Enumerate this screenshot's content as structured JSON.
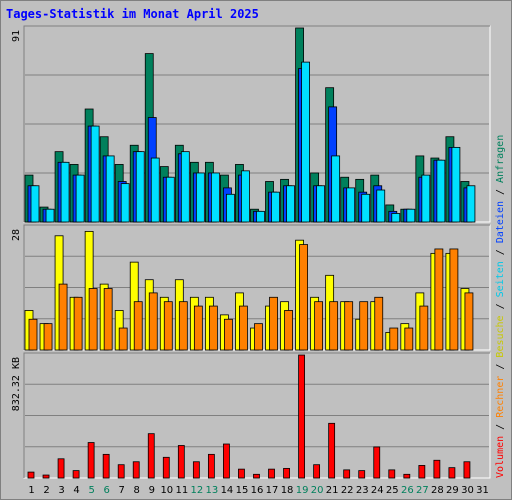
{
  "chart_data": {
    "title": "Tages-Statistik im Monat April 2025",
    "days": [
      1,
      2,
      3,
      4,
      5,
      6,
      7,
      8,
      9,
      10,
      11,
      12,
      13,
      14,
      15,
      16,
      17,
      18,
      19,
      20,
      21,
      22,
      23,
      24,
      25,
      26,
      27,
      28,
      29,
      30,
      31
    ],
    "weekend_days": [
      5,
      6,
      12,
      13,
      19,
      20,
      26,
      27
    ],
    "panels": [
      {
        "id": "requests",
        "type": "bar",
        "ymax_label": "91",
        "ymax": 91,
        "series": [
          {
            "name": "Anfragen",
            "color": "#00805c",
            "values": [
              22,
              7,
              33,
              27,
              53,
              40,
              27,
              36,
              79,
              26,
              36,
              28,
              28,
              22,
              27,
              6,
              19,
              20,
              91,
              23,
              63,
              21,
              20,
              22,
              8,
              6,
              31,
              30,
              40,
              19,
              0
            ]
          },
          {
            "name": "Dateien",
            "color": "#0040ff",
            "values": [
              17,
              6,
              28,
              22,
              45,
              31,
              19,
              33,
              49,
              21,
              32,
              23,
              23,
              16,
              22,
              5,
              14,
              17,
              72,
              17,
              54,
              16,
              14,
              17,
              5,
              6,
              21,
              29,
              35,
              16,
              0
            ]
          },
          {
            "name": "Seiten",
            "color": "#00e0ff",
            "values": [
              17,
              6,
              28,
              22,
              45,
              31,
              18,
              33,
              30,
              21,
              33,
              23,
              23,
              13,
              24,
              5,
              14,
              17,
              75,
              17,
              31,
              16,
              13,
              15,
              4,
              6,
              22,
              29,
              35,
              17,
              0
            ]
          }
        ]
      },
      {
        "id": "visits",
        "type": "bar",
        "ymax_label": "28",
        "ymax": 28,
        "series": [
          {
            "name": "Besuche",
            "color": "#ffff00",
            "values": [
              9,
              6,
              26,
              12,
              27,
              15,
              9,
              20,
              16,
              12,
              16,
              12,
              12,
              8,
              13,
              5,
              10,
              11,
              25,
              12,
              17,
              11,
              7,
              11,
              4,
              6,
              13,
              22,
              22,
              14,
              0
            ]
          },
          {
            "name": "Rechner",
            "color": "#ff8000",
            "values": [
              7,
              6,
              15,
              12,
              14,
              14,
              5,
              11,
              13,
              11,
              11,
              10,
              10,
              7,
              10,
              6,
              12,
              9,
              24,
              11,
              11,
              11,
              11,
              12,
              5,
              5,
              10,
              23,
              23,
              13,
              0
            ]
          }
        ]
      },
      {
        "id": "volume",
        "type": "bar",
        "ymax_label": "832.32 KB",
        "ymax": 832.32,
        "series": [
          {
            "name": "Volumen",
            "color": "#ff0000",
            "values": [
              40,
              20,
              130,
              50,
              240,
              160,
              90,
              110,
              300,
              140,
              220,
              110,
              160,
              230,
              60,
              25,
              60,
              65,
              832,
              90,
              370,
              55,
              50,
              210,
              55,
              25,
              85,
              120,
              70,
              110,
              0
            ]
          }
        ]
      }
    ],
    "right_legend": [
      {
        "text": "Volumen",
        "color": "#ff0000"
      },
      {
        "text": " / ",
        "color": "#000000"
      },
      {
        "text": "Rechner",
        "color": "#ff8000"
      },
      {
        "text": " / ",
        "color": "#000000"
      },
      {
        "text": "Besuche",
        "color": "#c8c800"
      },
      {
        "text": " / ",
        "color": "#000000"
      },
      {
        "text": "Seiten",
        "color": "#00c8e8"
      },
      {
        "text": " / ",
        "color": "#000000"
      },
      {
        "text": "Dateien",
        "color": "#0040ff"
      },
      {
        "text": " / ",
        "color": "#000000"
      },
      {
        "text": "Anfragen",
        "color": "#00805c"
      }
    ],
    "colors": {
      "title": "#0000ff",
      "weekday_label": "#000000",
      "weekend_label": "#00805c",
      "background": "#c0c0c0",
      "grid": "#808080"
    }
  }
}
